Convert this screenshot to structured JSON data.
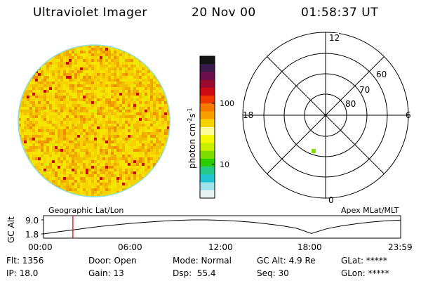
{
  "header": {
    "instrument": "Ultraviolet Imager",
    "date": "20 Nov 00",
    "time": "01:58:37 UT"
  },
  "colorbar": {
    "unit": "photon cm",
    "unit_exp1": "-2",
    "unit_s": "s",
    "unit_exp2": "-1",
    "ticks": [
      "100",
      "10"
    ],
    "colors_top_to_bottom": [
      "#141414",
      "#3a1a4a",
      "#6b0f4f",
      "#9a0a2e",
      "#cc0b13",
      "#ee3a00",
      "#f77a00",
      "#f7a000",
      "#f7d300",
      "#fffc9a",
      "#f6f600",
      "#c8ee00",
      "#7ddc00",
      "#2ccd00",
      "#27c98b",
      "#22c5cf",
      "#9fe2ec",
      "#e7f2f4"
    ]
  },
  "image_disk": {
    "palette": [
      "#f5e600",
      "#f7d300",
      "#f2bf00",
      "#f2a700",
      "#ef8d00",
      "#cc0b13",
      "#d9f000"
    ],
    "rim_color": "#8ee0d8"
  },
  "polar_plot": {
    "clock_labels": {
      "top": "12",
      "left": "18",
      "right": "6",
      "bottom": "0"
    },
    "lat_labels": [
      "60",
      "70",
      "80"
    ],
    "marker_color": "#84e000"
  },
  "orbit": {
    "left_label": "Geographic Lat/Lon",
    "right_label": "Apex MLat/MLT",
    "y_axis_title": "GC Alt",
    "y_ticks": [
      "9.0",
      "1.8"
    ],
    "x_ticks": [
      "00:00",
      "06:00",
      "12:00",
      "18:00",
      "23:59"
    ],
    "time_marker_color": "#d40000",
    "hours": [
      0,
      1,
      2,
      3,
      4,
      5,
      6,
      7,
      8,
      9,
      10,
      11,
      12,
      13,
      14,
      15,
      16,
      17,
      18,
      19,
      20,
      21,
      22,
      23,
      24
    ],
    "alt_re": [
      1.8,
      2.9,
      3.9,
      4.9,
      5.8,
      6.6,
      7.3,
      7.9,
      8.4,
      8.8,
      9.0,
      9.0,
      8.8,
      8.4,
      7.8,
      7.0,
      6.0,
      4.7,
      2.0,
      4.4,
      5.9,
      7.0,
      7.9,
      8.5,
      8.9
    ]
  },
  "footer": {
    "col1": {
      "r1": "Flt: 1356",
      "r2": "IP: 18.0"
    },
    "col2": {
      "r1": "Door: Open",
      "r2": "Gain: 13"
    },
    "col3": {
      "r1": "Mode: Normal",
      "r2": "Dsp:  55.4"
    },
    "col4": {
      "r1": "GC Alt: 4.9 Re",
      "r2": "Seq: 30"
    },
    "col5": {
      "r1": "GLat: *****",
      "r2": "GLon: *****"
    }
  }
}
